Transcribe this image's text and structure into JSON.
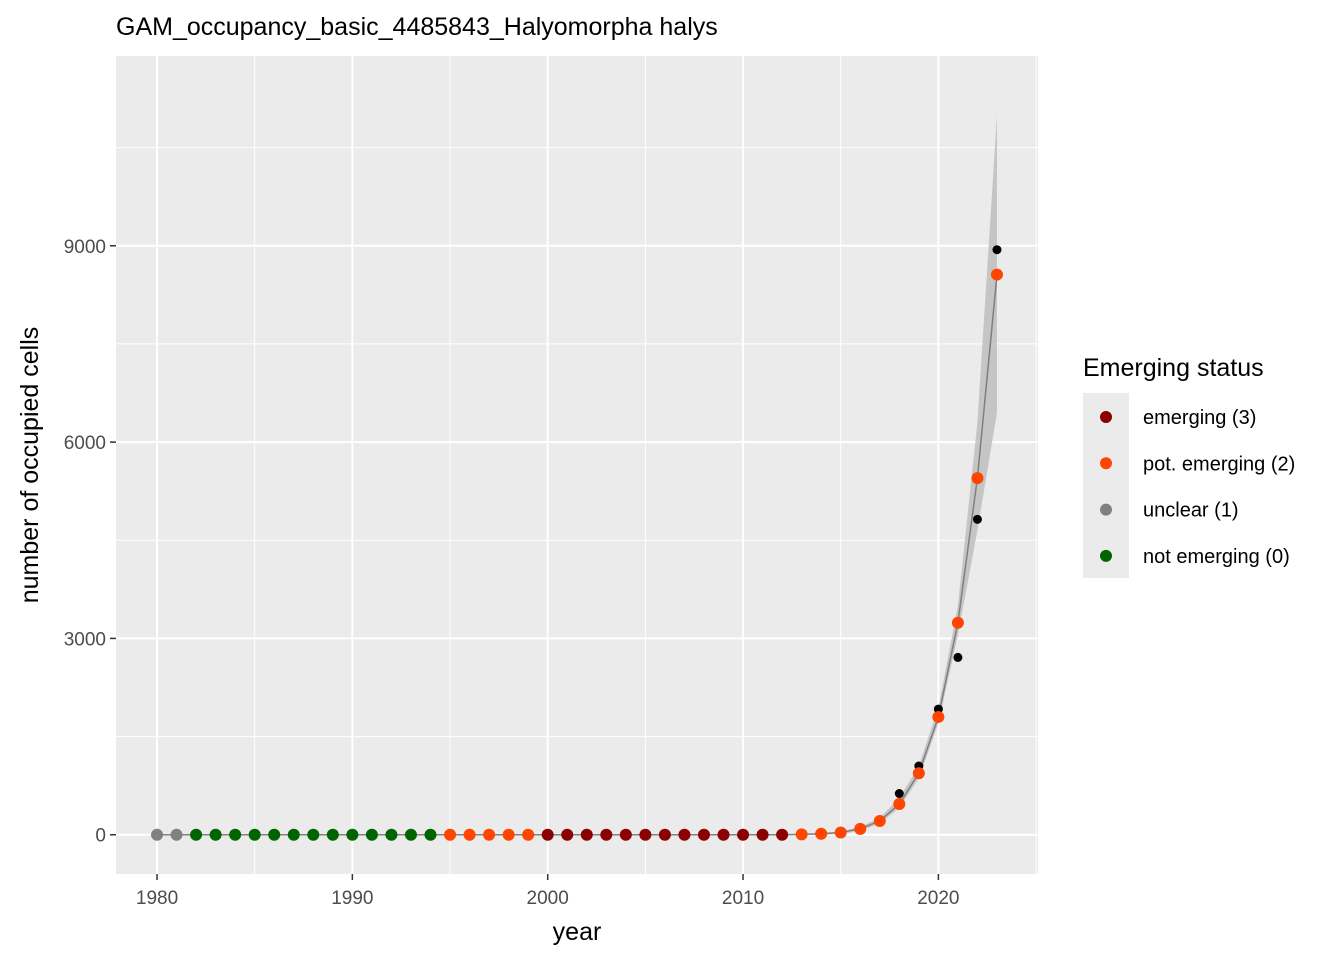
{
  "chart_data": {
    "type": "scatter",
    "title": "GAM_occupancy_basic_4485843_Halyomorpha halys",
    "xlabel": "year",
    "ylabel": "number of occupied cells",
    "xlim": [
      1977.9,
      2025.1
    ],
    "ylim": [
      -600,
      11900
    ],
    "x_ticks": [
      1980,
      1990,
      2000,
      2010,
      2020
    ],
    "y_ticks": [
      0,
      3000,
      6000,
      9000
    ],
    "grid": true,
    "legend": {
      "title": "Emerging status",
      "position": "right",
      "entries": [
        {
          "label": "emerging (3)",
          "color": "#8b0000"
        },
        {
          "label": "pot. emerging (2)",
          "color": "#ff4500"
        },
        {
          "label": "unclear (1)",
          "color": "#808080"
        },
        {
          "label": "not emerging (0)",
          "color": "#006400"
        }
      ]
    },
    "observed": {
      "color": "#000000",
      "x": [
        2018,
        2019,
        2020,
        2021,
        2022,
        2023
      ],
      "y": [
        630,
        1050,
        1920,
        2710,
        4820,
        8940
      ]
    },
    "fitted": {
      "color": "#ff4500",
      "x": [
        1980,
        1981,
        1982,
        1983,
        1984,
        1985,
        1986,
        1987,
        1988,
        1989,
        1990,
        1991,
        1992,
        1993,
        1994,
        1995,
        1996,
        1997,
        1998,
        1999,
        2000,
        2001,
        2002,
        2003,
        2004,
        2005,
        2006,
        2007,
        2008,
        2009,
        2010,
        2011,
        2012,
        2013,
        2014,
        2015,
        2016,
        2017,
        2018,
        2019,
        2020,
        2021,
        2022,
        2023
      ],
      "y": [
        0,
        0,
        0,
        0,
        0,
        0,
        0,
        0,
        0,
        0,
        0,
        0,
        0,
        0,
        0,
        0,
        0,
        0,
        0,
        0,
        0,
        0,
        0,
        0,
        0,
        0,
        0,
        0,
        0,
        0,
        0,
        0,
        0,
        5,
        15,
        35,
        90,
        210,
        470,
        940,
        1800,
        3240,
        5450,
        8560
      ],
      "status": [
        1,
        1,
        0,
        0,
        0,
        0,
        0,
        0,
        0,
        0,
        0,
        0,
        0,
        0,
        0,
        2,
        2,
        2,
        2,
        2,
        3,
        3,
        3,
        3,
        3,
        3,
        3,
        3,
        3,
        3,
        3,
        3,
        3,
        2,
        2,
        2,
        2,
        2,
        2,
        2,
        2,
        2,
        2,
        2
      ]
    },
    "ci": {
      "color": "#bebebe",
      "x": [
        2012,
        2013,
        2014,
        2015,
        2016,
        2017,
        2018,
        2019,
        2020,
        2021,
        2022,
        2023
      ],
      "lower": [
        0,
        0,
        0,
        10,
        60,
        170,
        410,
        860,
        1700,
        3050,
        4650,
        6450
      ],
      "upper": [
        0,
        0,
        10,
        50,
        120,
        260,
        560,
        1050,
        1950,
        3500,
        6300,
        11000
      ]
    },
    "status_colors": {
      "3": "#8b0000",
      "2": "#ff4500",
      "1": "#808080",
      "0": "#006400"
    }
  }
}
